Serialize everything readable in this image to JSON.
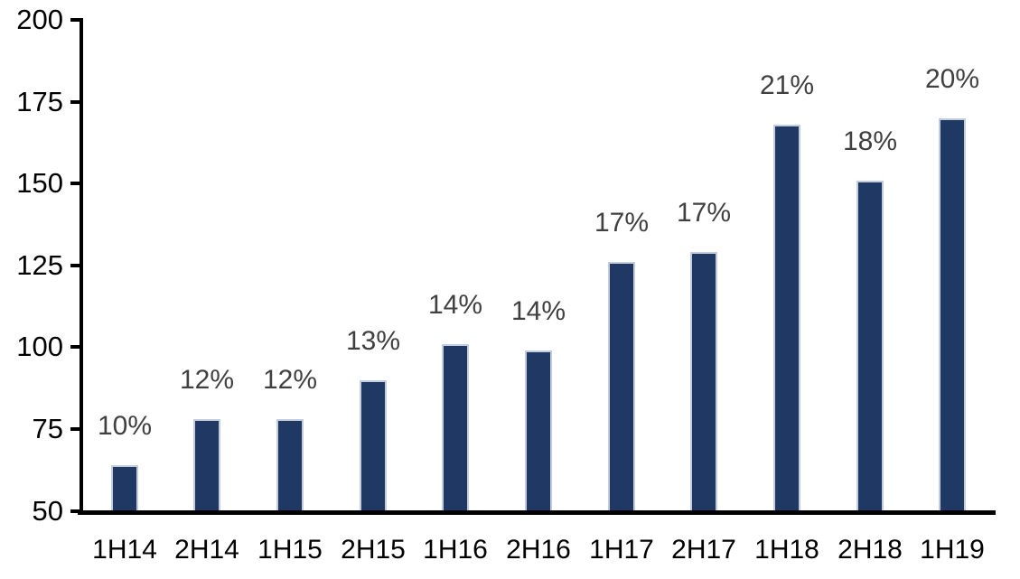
{
  "chart_data": {
    "type": "bar",
    "title": "",
    "categories": [
      "1H14",
      "2H14",
      "1H15",
      "2H15",
      "1H16",
      "2H16",
      "1H17",
      "2H17",
      "1H18",
      "2H18",
      "1H19"
    ],
    "values": [
      64,
      78,
      78,
      90,
      101,
      99,
      126,
      129,
      168,
      151,
      170
    ],
    "data_labels": [
      "10%",
      "12%",
      "12%",
      "13%",
      "14%",
      "14%",
      "17%",
      "17%",
      "21%",
      "18%",
      "20%"
    ],
    "xlabel": "",
    "ylabel": "",
    "ylim": [
      50,
      200
    ],
    "yticks": [
      50,
      75,
      100,
      125,
      150,
      175,
      200
    ],
    "grid": false,
    "legend_position": "none",
    "colors": {
      "bar_fill": "#1F3864",
      "bar_border": "#C2CCDC",
      "data_label": "#404040",
      "axis_line": "#000000",
      "tick_label": "#000000",
      "background": "#FFFFFF"
    }
  }
}
